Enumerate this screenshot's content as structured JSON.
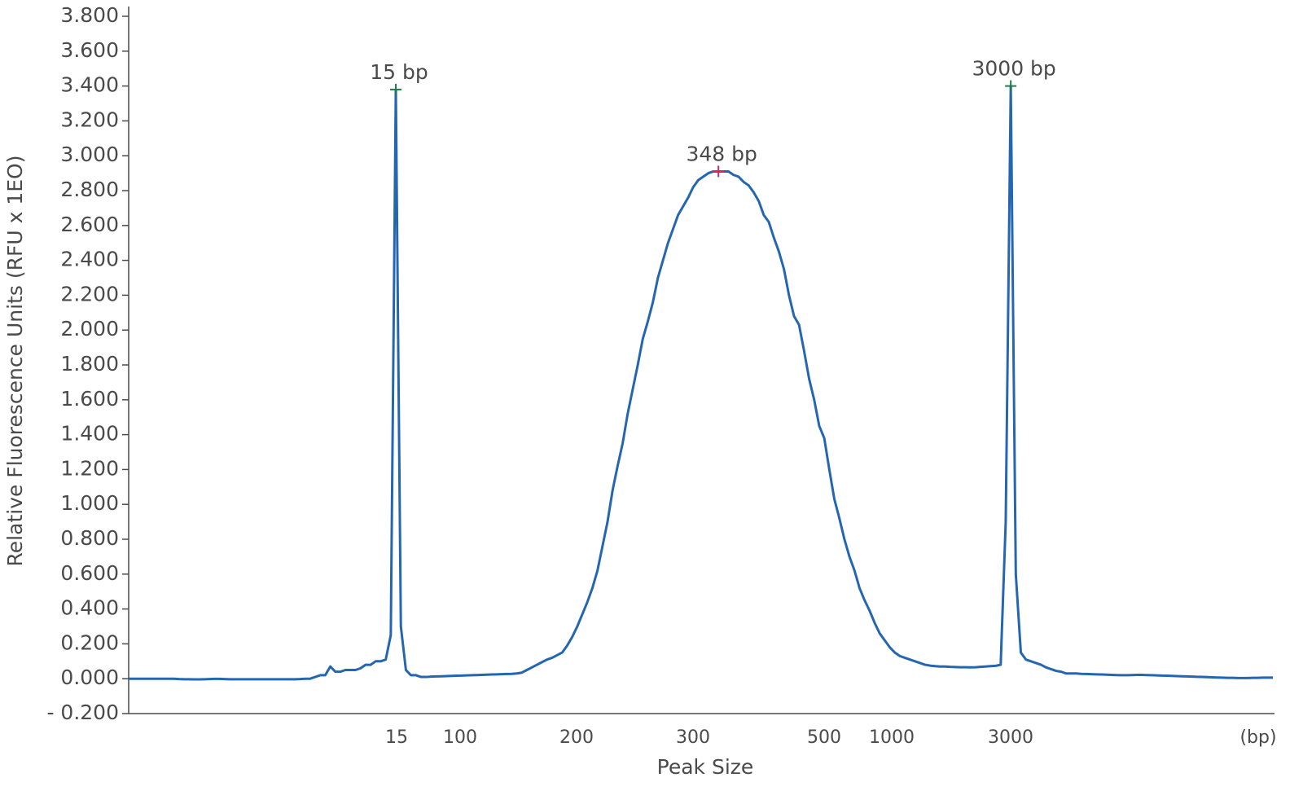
{
  "chart_data": {
    "type": "line",
    "y_label": "Relative Fluorescence Units (RFU x 1EO)",
    "x_label": "Peak Size",
    "x_tick_labels": [
      15,
      100,
      200,
      300,
      500,
      1000,
      3000
    ],
    "x_unit": "(bp)",
    "ylim": [
      -0.2,
      3.8
    ],
    "yticks": [
      {
        "value": -0.2,
        "label": "- 0.200"
      },
      {
        "value": 0,
        "label": "0.000"
      },
      {
        "value": 0.2,
        "label": "0.200"
      },
      {
        "value": 0.4,
        "label": "0.400"
      },
      {
        "value": 0.6,
        "label": "0.600"
      },
      {
        "value": 0.8,
        "label": "0.800"
      },
      {
        "value": 1,
        "label": "1.000"
      },
      {
        "value": 1.2,
        "label": "1.200"
      },
      {
        "value": 1.4,
        "label": "1.400"
      },
      {
        "value": 1.6,
        "label": "1.600"
      },
      {
        "value": 1.8,
        "label": "1.800"
      },
      {
        "value": 2,
        "label": "2.000"
      },
      {
        "value": 2.2,
        "label": "2.200"
      },
      {
        "value": 2.4,
        "label": "2.400"
      },
      {
        "value": 2.6,
        "label": "2.600"
      },
      {
        "value": 2.8,
        "label": "2.800"
      },
      {
        "value": 3,
        "label": "3.000"
      },
      {
        "value": 3.2,
        "label": "3.200"
      },
      {
        "value": 3.4,
        "label": "3.400"
      },
      {
        "value": 3.6,
        "label": "3.600"
      },
      {
        "value": 3.8,
        "label": "3.800"
      }
    ],
    "color": "#2566b0",
    "values": [
      0,
      0,
      0,
      0,
      0,
      0,
      0,
      0,
      0,
      0,
      -0.002,
      -0.003,
      -0.003,
      -0.004,
      -0.004,
      -0.003,
      -0.002,
      -0.001,
      -0.001,
      -0.002,
      -0.003,
      -0.003,
      -0.003,
      -0.003,
      -0.003,
      -0.003,
      -0.003,
      -0.003,
      -0.003,
      -0.003,
      -0.003,
      -0.003,
      -0.003,
      -0.003,
      -0.002,
      0,
      0,
      0.01,
      0.02,
      0.02,
      0.07,
      0.04,
      0.04,
      0.05,
      0.05,
      0.05,
      0.06,
      0.08,
      0.08,
      0.1,
      0.1,
      0.11,
      0.25,
      3.38,
      0.3,
      0.05,
      0.02,
      0.02,
      0.01,
      0.01,
      0.012,
      0.013,
      0.014,
      0.015,
      0.016,
      0.017,
      0.018,
      0.019,
      0.02,
      0.021,
      0.022,
      0.023,
      0.024,
      0.025,
      0.026,
      0.027,
      0.028,
      0.03,
      0.035,
      0.05,
      0.065,
      0.08,
      0.095,
      0.11,
      0.12,
      0.135,
      0.15,
      0.19,
      0.24,
      0.3,
      0.37,
      0.44,
      0.52,
      0.62,
      0.76,
      0.9,
      1.08,
      1.22,
      1.35,
      1.52,
      1.66,
      1.8,
      1.95,
      2.05,
      2.16,
      2.3,
      2.4,
      2.5,
      2.58,
      2.66,
      2.71,
      2.76,
      2.82,
      2.86,
      2.88,
      2.9,
      2.91,
      2.91,
      2.91,
      2.91,
      2.89,
      2.88,
      2.85,
      2.83,
      2.79,
      2.74,
      2.66,
      2.62,
      2.53,
      2.45,
      2.35,
      2.2,
      2.08,
      2.03,
      1.88,
      1.72,
      1.6,
      1.45,
      1.38,
      1.2,
      1.03,
      0.92,
      0.8,
      0.7,
      0.62,
      0.52,
      0.45,
      0.39,
      0.32,
      0.26,
      0.22,
      0.18,
      0.15,
      0.13,
      0.12,
      0.11,
      0.1,
      0.09,
      0.08,
      0.075,
      0.072,
      0.07,
      0.07,
      0.068,
      0.067,
      0.066,
      0.066,
      0.065,
      0.066,
      0.068,
      0.07,
      0.072,
      0.074,
      0.08,
      0.9,
      3.4,
      0.6,
      0.15,
      0.11,
      0.1,
      0.09,
      0.08,
      0.065,
      0.055,
      0.045,
      0.04,
      0.03,
      0.03,
      0.03,
      0.028,
      0.027,
      0.026,
      0.025,
      0.024,
      0.023,
      0.022,
      0.021,
      0.02,
      0.02,
      0.021,
      0.022,
      0.022,
      0.021,
      0.02,
      0.019,
      0.018,
      0.017,
      0.016,
      0.015,
      0.014,
      0.013,
      0.012,
      0.011,
      0.01,
      0.009,
      0.008,
      0.007,
      0.006,
      0.005,
      0.005,
      0.004,
      0.004,
      0.004,
      0.005,
      0.005,
      0.006,
      0.006,
      0.006
    ],
    "annotations": [
      {
        "text": "15 bp",
        "point": 53,
        "color": "#1f7a4d"
      },
      {
        "text": "348 bp",
        "point": 117,
        "color": "#e0245e"
      },
      {
        "text": "3000 bp",
        "point": 175,
        "color": "#1f7a4d"
      }
    ]
  }
}
